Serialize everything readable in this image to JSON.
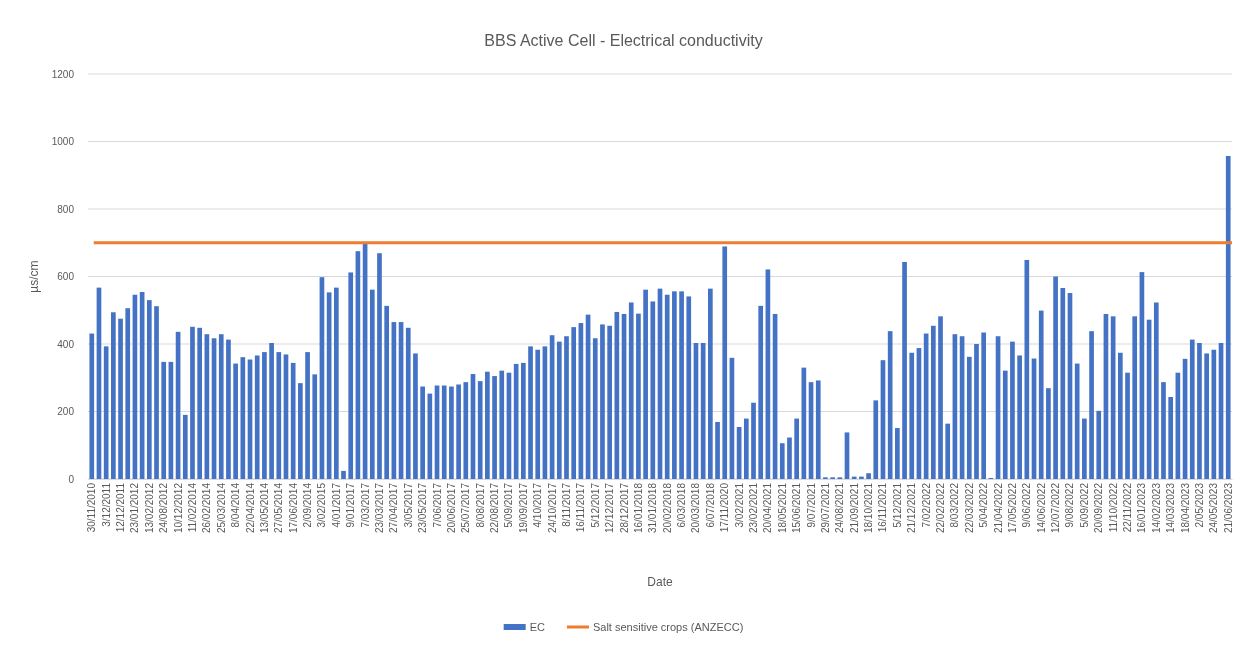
{
  "chart_data": {
    "type": "bar",
    "title": "BBS Active Cell - Electrical conductivity",
    "xlabel": "Date",
    "ylabel": "µs/cm",
    "categories": [
      "30/11/2010",
      null,
      "3/12/2011",
      null,
      "12/12/2011",
      null,
      "23/01/2012",
      null,
      "13/02/2012",
      null,
      "24/08/2012",
      null,
      "10/12/2012",
      null,
      "11/02/2014",
      null,
      "26/02/2014",
      null,
      "25/03/2014",
      null,
      "8/04/2014",
      null,
      "22/04/2014",
      null,
      "13/05/2014",
      null,
      "27/05/2014",
      null,
      "17/06/2014",
      null,
      "2/09/2014",
      null,
      "3/02/2015",
      null,
      "4/01/2017",
      null,
      "9/01/2017",
      null,
      "7/03/2017",
      null,
      "23/03/2017",
      null,
      "27/04/2017",
      null,
      "3/05/2017",
      null,
      "23/05/2017",
      null,
      "7/06/2017",
      null,
      "20/06/2017",
      null,
      "25/07/2017",
      null,
      "8/08/2017",
      null,
      "22/08/2017",
      null,
      "5/09/2017",
      null,
      "19/09/2017",
      null,
      "4/10/2017",
      null,
      "24/10/2017",
      null,
      "8/11/2017",
      null,
      "16/11/2017",
      null,
      "5/12/2017",
      null,
      "12/12/2017",
      null,
      "28/12/2017",
      null,
      "16/01/2018",
      null,
      "31/01/2018",
      null,
      "20/02/2018",
      null,
      "6/03/2018",
      null,
      "20/03/2018",
      null,
      "6/07/2018",
      null,
      "17/11/2020",
      null,
      "3/02/2021",
      null,
      "23/02/2021",
      null,
      "20/04/2021",
      null,
      "18/05/2021",
      null,
      "15/06/2021",
      null,
      "9/07/2021",
      null,
      "29/07/2021",
      null,
      "24/08/2021",
      null,
      "21/09/2021",
      null,
      "18/10/2021",
      null,
      "16/11/2021",
      null,
      "5/12/2021",
      null,
      "21/12/2021",
      null,
      "7/02/2022",
      null,
      "22/02/2022",
      null,
      "8/03/2022",
      null,
      "22/03/2022",
      null,
      "5/04/2022",
      null,
      "21/04/2022",
      null,
      "17/05/2022",
      null,
      "9/06/2022",
      null,
      "14/06/2022",
      null,
      "12/07/2022",
      null,
      "9/08/2022",
      null,
      "5/09/2022",
      null,
      "20/09/2022",
      null,
      "11/10/2022",
      null,
      "22/11/2022",
      null,
      "16/01/2023",
      null,
      "14/02/2023",
      null,
      "14/03/2023",
      null,
      "18/04/2023",
      null,
      "2/05/2023",
      null,
      "24/05/2023",
      null,
      "21/06/2023"
    ],
    "series": [
      {
        "name": "EC",
        "color": "#4472c4",
        "values": [
          431,
          567,
          393,
          494,
          475,
          506,
          546,
          554,
          530,
          512,
          347,
          347,
          436,
          190,
          451,
          448,
          429,
          417,
          429,
          413,
          342,
          361,
          354,
          366,
          376,
          403,
          376,
          369,
          344,
          284,
          376,
          310,
          598,
          553,
          567,
          24,
          612,
          675,
          700,
          561,
          669,
          513,
          465,
          465,
          448,
          372,
          274,
          253,
          277,
          277,
          274,
          280,
          287,
          311,
          290,
          318,
          305,
          321,
          315,
          341,
          344,
          393,
          383,
          393,
          426,
          407,
          423,
          450,
          462,
          487,
          417,
          458,
          454,
          495,
          489,
          523,
          490,
          561,
          526,
          564,
          546,
          556,
          556,
          541,
          403,
          403,
          564,
          169,
          689,
          359,
          154,
          179,
          226,
          513,
          621,
          489,
          106,
          123,
          179,
          330,
          287,
          292,
          5,
          5,
          5,
          138,
          7,
          7,
          17,
          233,
          352,
          438,
          151,
          643,
          374,
          388,
          431,
          454,
          482,
          164,
          429,
          423,
          362,
          400,
          434,
          3,
          423,
          321,
          407,
          366,
          649,
          357,
          499,
          269,
          600,
          566,
          551,
          342,
          179,
          438,
          202,
          489,
          482,
          374,
          315,
          482,
          613,
          472,
          523,
          287,
          243,
          315,
          356,
          413,
          403,
          372,
          383,
          403,
          957
        ]
      }
    ],
    "ref_lines": [
      {
        "axis": "y",
        "value": 700,
        "label": "Salt sensitive crops (ANZECC)",
        "color": "#ed7d31"
      }
    ],
    "ylim": [
      0,
      1200
    ],
    "yticks": [
      0,
      200,
      400,
      600,
      800,
      1000,
      1200
    ],
    "grid": "y",
    "legend": "bottom"
  }
}
